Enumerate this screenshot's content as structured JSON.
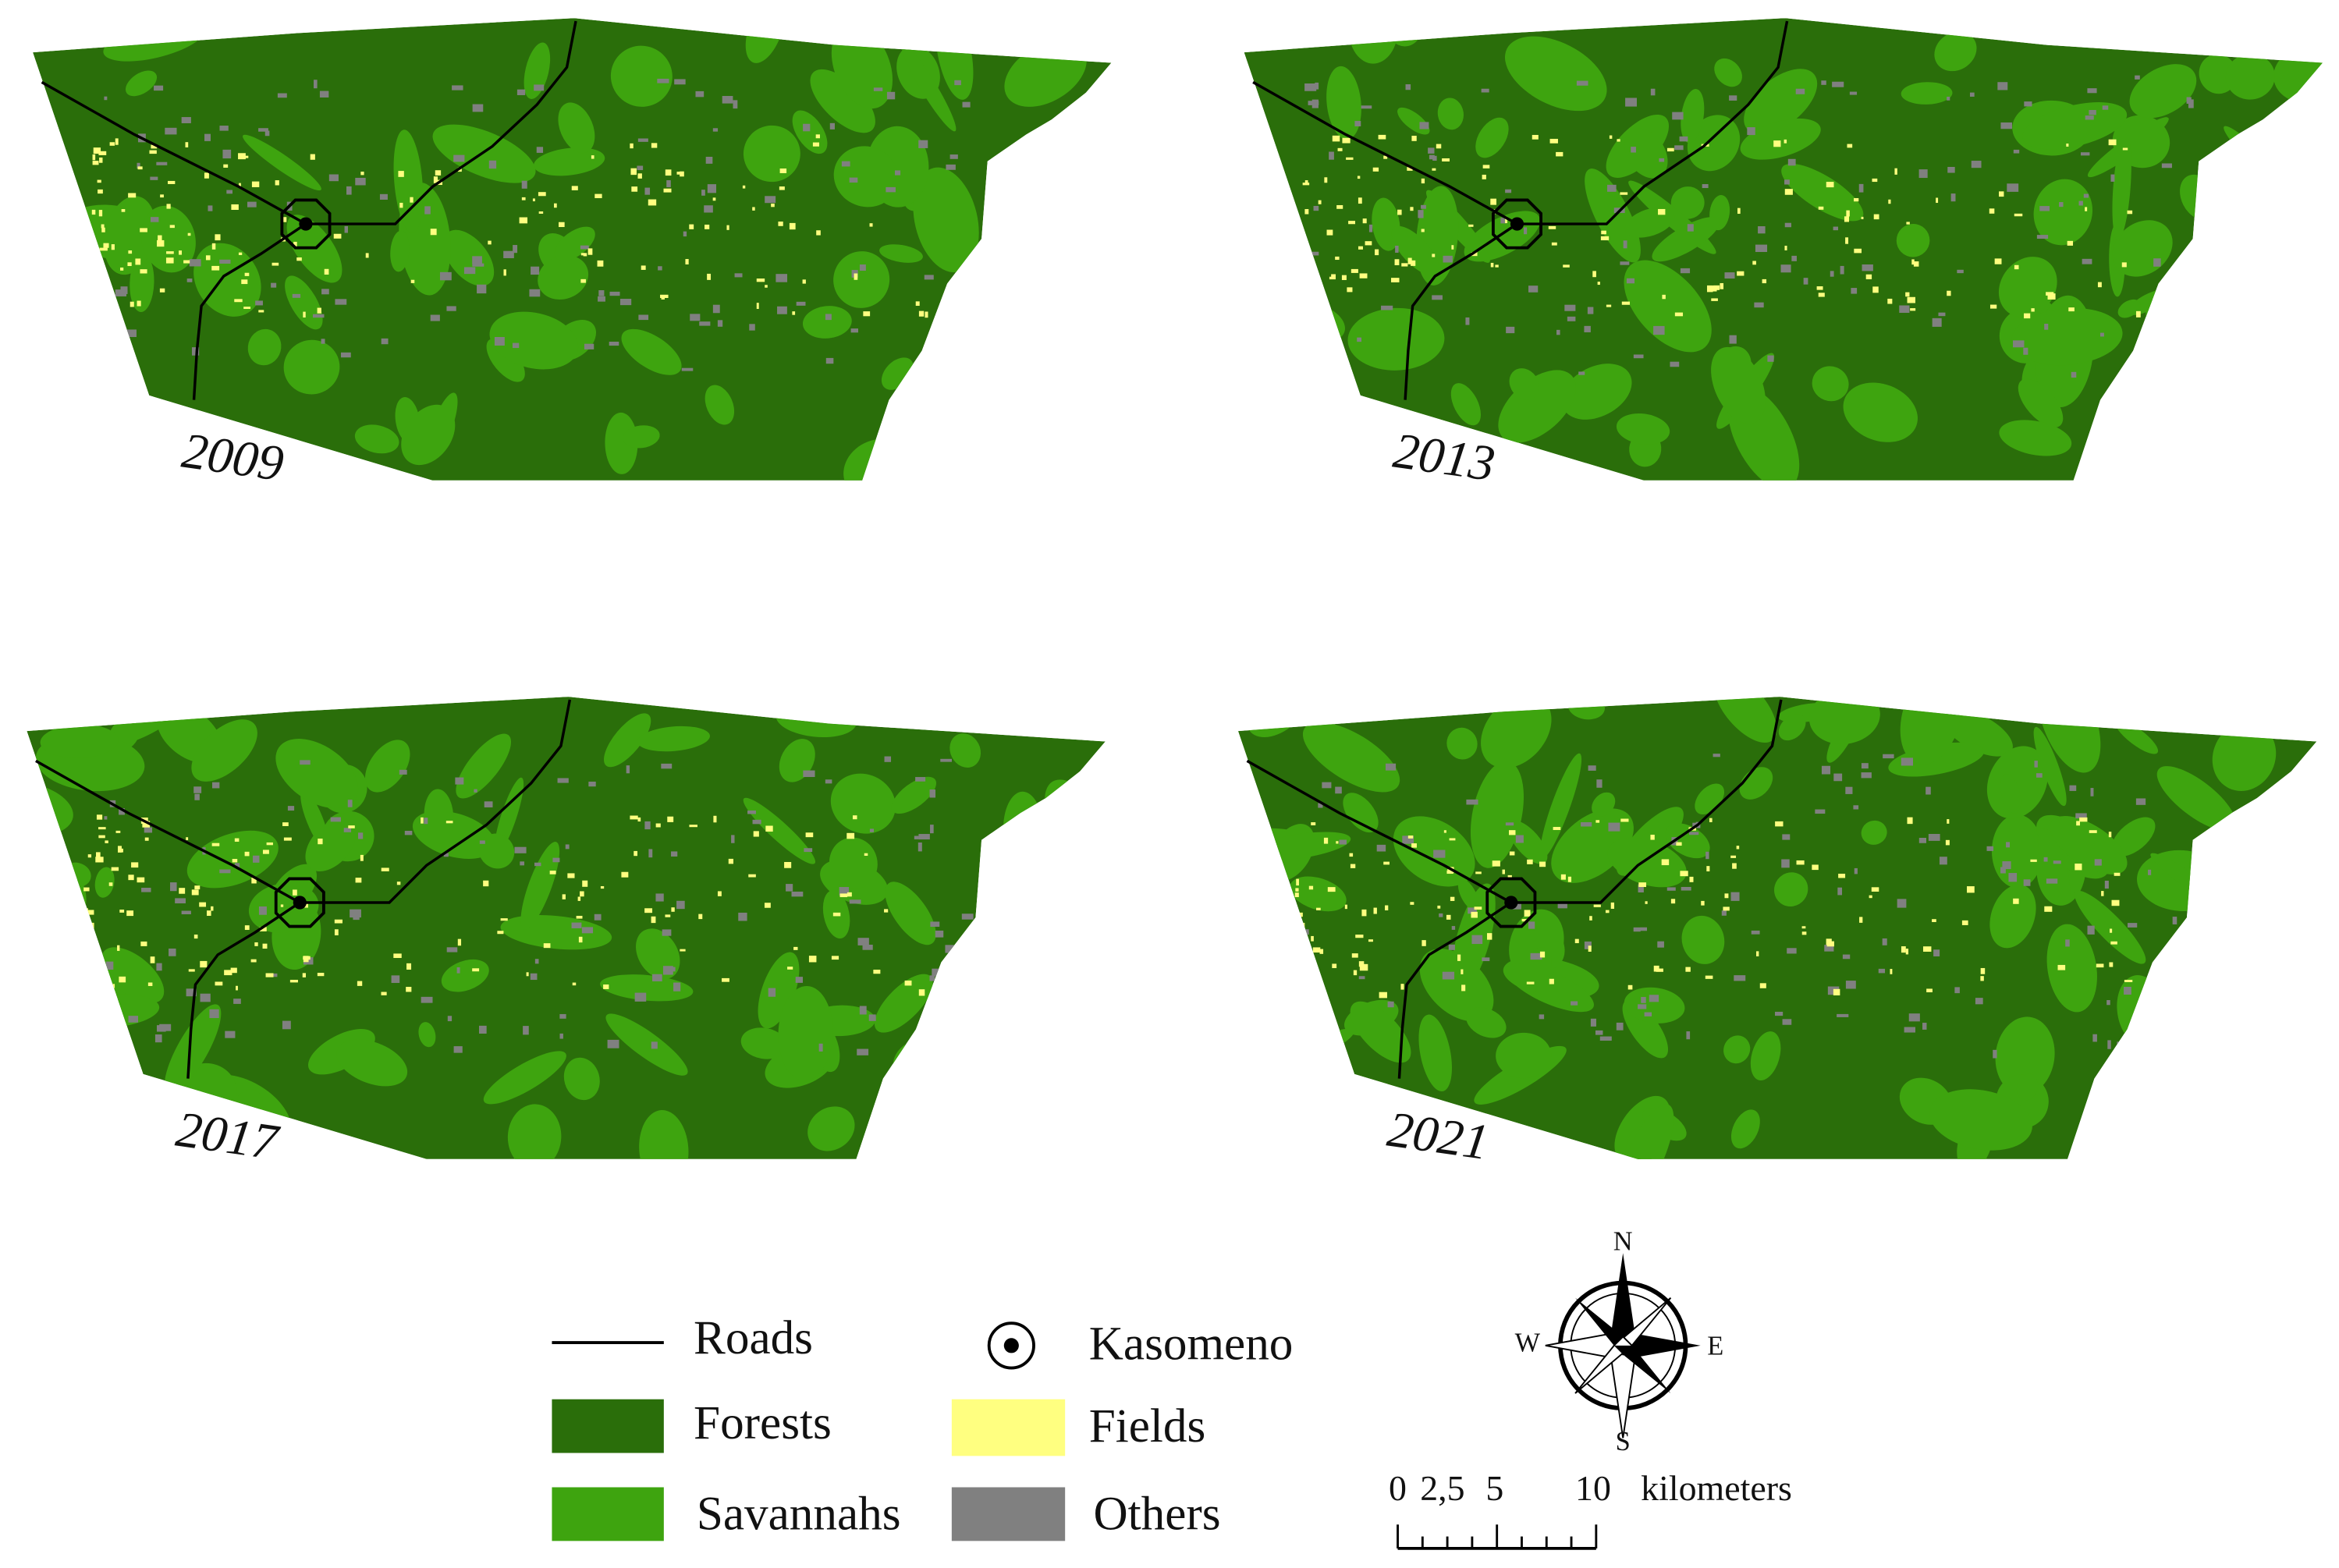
{
  "maps": [
    {
      "year": "2009"
    },
    {
      "year": "2013"
    },
    {
      "year": "2017"
    },
    {
      "year": "2021"
    }
  ],
  "legend": {
    "items": [
      {
        "label": "Roads"
      },
      {
        "label": "Kasomeno"
      },
      {
        "label": "Forests",
        "color": "#2a6e0a"
      },
      {
        "label": "Fields",
        "color": "#ffff80"
      },
      {
        "label": "Savannahs",
        "color": "#3ea40f"
      },
      {
        "label": "Others",
        "color": "#808080"
      }
    ]
  },
  "compass": {
    "north": "N",
    "south": "S",
    "east": "E",
    "west": "W"
  },
  "scale_bar": {
    "labels": [
      "0",
      "2,5",
      "5",
      "10"
    ],
    "unit": "kilometers"
  }
}
